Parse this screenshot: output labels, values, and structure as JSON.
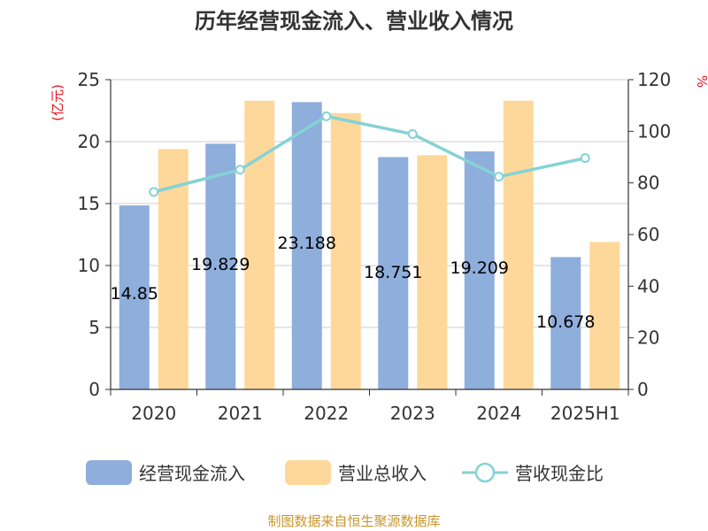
{
  "chart_data": {
    "type": "bar",
    "title": "历年经营现金流入、营业收入情况",
    "categories": [
      "2020",
      "2021",
      "2022",
      "2023",
      "2024",
      "2025H1"
    ],
    "series": [
      {
        "name": "经营现金流入",
        "type": "bar",
        "axis": "left",
        "color": "#8eaedc",
        "values": [
          14.85,
          19.829,
          23.188,
          18.751,
          19.209,
          10.678
        ],
        "labels": [
          "14.85",
          "19.829",
          "23.188",
          "18.751",
          "19.209",
          "10.678"
        ]
      },
      {
        "name": "营业总收入",
        "type": "bar",
        "axis": "left",
        "color": "#fed89b",
        "values": [
          19.4,
          23.3,
          22.3,
          18.9,
          23.3,
          11.9
        ]
      },
      {
        "name": "营收现金比",
        "type": "line",
        "axis": "right",
        "color": "#85d2d6",
        "values": [
          76.5,
          85.1,
          105.8,
          98.9,
          82.4,
          89.6
        ]
      }
    ],
    "left_axis": {
      "unit": "(亿元)",
      "min": 0,
      "max": 25,
      "ticks": [
        0,
        5,
        10,
        15,
        20,
        25
      ]
    },
    "right_axis": {
      "unit": "%",
      "min": 0,
      "max": 120,
      "ticks": [
        0,
        20,
        40,
        60,
        80,
        100,
        120
      ]
    },
    "grid": true,
    "legend_position": "bottom",
    "source": "制图数据来自恒生聚源数据库"
  }
}
